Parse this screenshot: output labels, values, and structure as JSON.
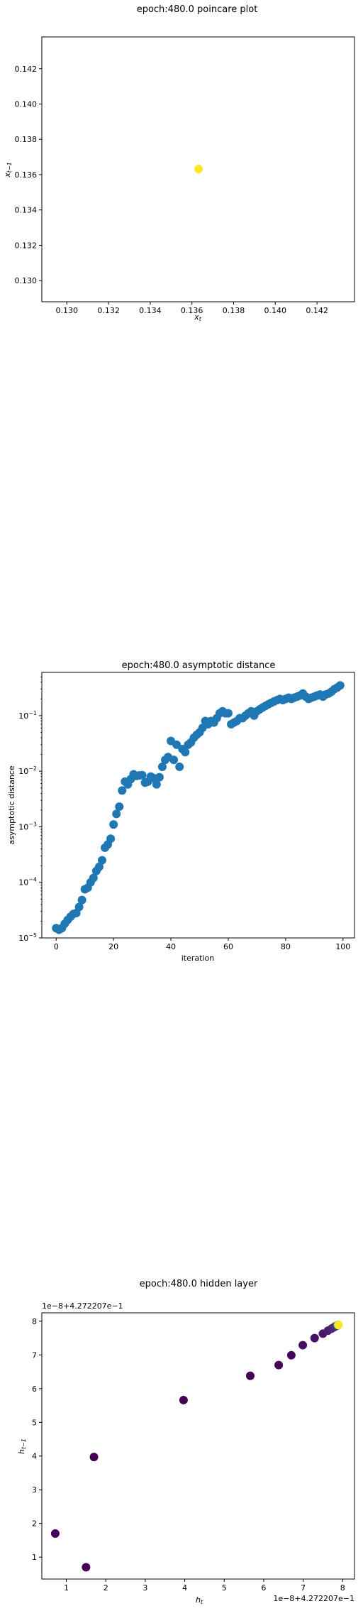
{
  "chart_data": [
    {
      "type": "scatter",
      "title": "epoch:480.0 poincare plot",
      "xlabel": "x_t",
      "ylabel": "x_{t-1}",
      "xlim": [
        0.1288,
        0.1438
      ],
      "ylim": [
        0.1288,
        0.1438
      ],
      "xticks": [
        "0.130",
        "0.132",
        "0.134",
        "0.136",
        "0.138",
        "0.140",
        "0.142"
      ],
      "yticks": [
        "0.130",
        "0.132",
        "0.134",
        "0.136",
        "0.138",
        "0.140",
        "0.142"
      ],
      "points": [
        {
          "x": 0.13632,
          "y": 0.13632,
          "color": "#fde725"
        }
      ],
      "grid": false
    },
    {
      "type": "scatter",
      "title": "epoch:480.0 asymptotic distance",
      "xlabel": "iteration",
      "ylabel": "asymptotic distance",
      "yscale": "log",
      "xlim": [
        -5,
        104
      ],
      "ylim": [
        1e-05,
        0.6
      ],
      "xticks": [
        "0",
        "20",
        "40",
        "60",
        "80",
        "100"
      ],
      "yticks": [
        "10^{-5}",
        "10^{-4}",
        "10^{-3}",
        "10^{-2}",
        "10^{-1}"
      ],
      "color": "#1f77b4",
      "x": [
        0,
        1,
        2,
        3,
        4,
        5,
        6,
        7,
        8,
        9,
        10,
        11,
        12,
        13,
        14,
        15,
        16,
        17,
        18,
        19,
        20,
        21,
        22,
        23,
        24,
        25,
        26,
        27,
        28,
        29,
        30,
        31,
        32,
        33,
        34,
        35,
        36,
        37,
        38,
        39,
        40,
        41,
        42,
        43,
        44,
        45,
        46,
        47,
        48,
        49,
        50,
        51,
        52,
        53,
        54,
        55,
        56,
        57,
        58,
        59,
        60,
        61,
        62,
        63,
        64,
        65,
        66,
        67,
        68,
        69,
        70,
        71,
        72,
        73,
        74,
        75,
        76,
        77,
        78,
        79,
        80,
        81,
        82,
        83,
        84,
        85,
        86,
        87,
        88,
        89,
        90,
        91,
        92,
        93,
        94,
        95,
        96,
        97,
        98,
        99
      ],
      "y": [
        1.5e-05,
        1.4e-05,
        1.5e-05,
        1.8e-05,
        2.1e-05,
        2.4e-05,
        2.7e-05,
        2.8e-05,
        3.6e-05,
        4.8e-05,
        7.5e-05,
        8e-05,
        0.0001,
        0.00012,
        0.00016,
        0.00019,
        0.00025,
        0.00042,
        0.00048,
        0.00061,
        0.0011,
        0.0017,
        0.0023,
        0.0045,
        0.0065,
        0.0058,
        0.0072,
        0.0088,
        0.0082,
        0.0084,
        0.0085,
        0.0062,
        0.0065,
        0.008,
        0.0075,
        0.0058,
        0.0078,
        0.012,
        0.016,
        0.018,
        0.035,
        0.016,
        0.03,
        0.012,
        0.025,
        0.022,
        0.03,
        0.033,
        0.04,
        0.045,
        0.05,
        0.06,
        0.08,
        0.07,
        0.08,
        0.075,
        0.09,
        0.11,
        0.12,
        0.11,
        0.11,
        0.07,
        0.075,
        0.08,
        0.09,
        0.09,
        0.1,
        0.11,
        0.12,
        0.1,
        0.12,
        0.13,
        0.14,
        0.15,
        0.16,
        0.17,
        0.18,
        0.19,
        0.2,
        0.19,
        0.2,
        0.21,
        0.2,
        0.21,
        0.22,
        0.23,
        0.25,
        0.22,
        0.2,
        0.21,
        0.22,
        0.23,
        0.24,
        0.22,
        0.24,
        0.25,
        0.27,
        0.3,
        0.32,
        0.35
      ],
      "grid": false
    },
    {
      "type": "scatter",
      "title": "epoch:480.0 hidden layer",
      "xlabel": "h_t",
      "ylabel": "h_{t-1}",
      "offset_label": "1e−8+4.272207e−1",
      "xlim": [
        0.38,
        8.3
      ],
      "ylim": [
        0.35,
        8.25
      ],
      "xticks": [
        "1",
        "2",
        "3",
        "4",
        "5",
        "6",
        "7",
        "8"
      ],
      "yticks": [
        "1",
        "2",
        "3",
        "4",
        "5",
        "6",
        "7",
        "8"
      ],
      "points": [
        {
          "x": 0.72,
          "y": 1.7,
          "color": "#440154"
        },
        {
          "x": 1.5,
          "y": 0.7,
          "color": "#440154"
        },
        {
          "x": 1.7,
          "y": 3.97,
          "color": "#440154"
        },
        {
          "x": 3.97,
          "y": 5.66,
          "color": "#440154"
        },
        {
          "x": 5.66,
          "y": 6.38,
          "color": "#440154"
        },
        {
          "x": 6.38,
          "y": 6.7,
          "color": "#450457"
        },
        {
          "x": 6.7,
          "y": 6.99,
          "color": "#46075a"
        },
        {
          "x": 6.99,
          "y": 7.29,
          "color": "#470e61"
        },
        {
          "x": 7.29,
          "y": 7.5,
          "color": "#471365"
        },
        {
          "x": 7.5,
          "y": 7.63,
          "color": "#48186a"
        },
        {
          "x": 7.63,
          "y": 7.72,
          "color": "#481d6f"
        },
        {
          "x": 7.72,
          "y": 7.78,
          "color": "#482374"
        },
        {
          "x": 7.78,
          "y": 7.82,
          "color": "#482979"
        },
        {
          "x": 7.82,
          "y": 7.85,
          "color": "#472f7d"
        },
        {
          "x": 7.85,
          "y": 7.87,
          "color": "#453882"
        },
        {
          "x": 7.87,
          "y": 7.88,
          "color": "#3e4989"
        },
        {
          "x": 7.88,
          "y": 7.88,
          "color": "#31688e"
        },
        {
          "x": 7.88,
          "y": 7.89,
          "color": "#21918c"
        },
        {
          "x": 7.89,
          "y": 7.89,
          "color": "#5ec962"
        },
        {
          "x": 7.89,
          "y": 7.89,
          "color": "#fde725"
        }
      ],
      "grid": false
    }
  ]
}
